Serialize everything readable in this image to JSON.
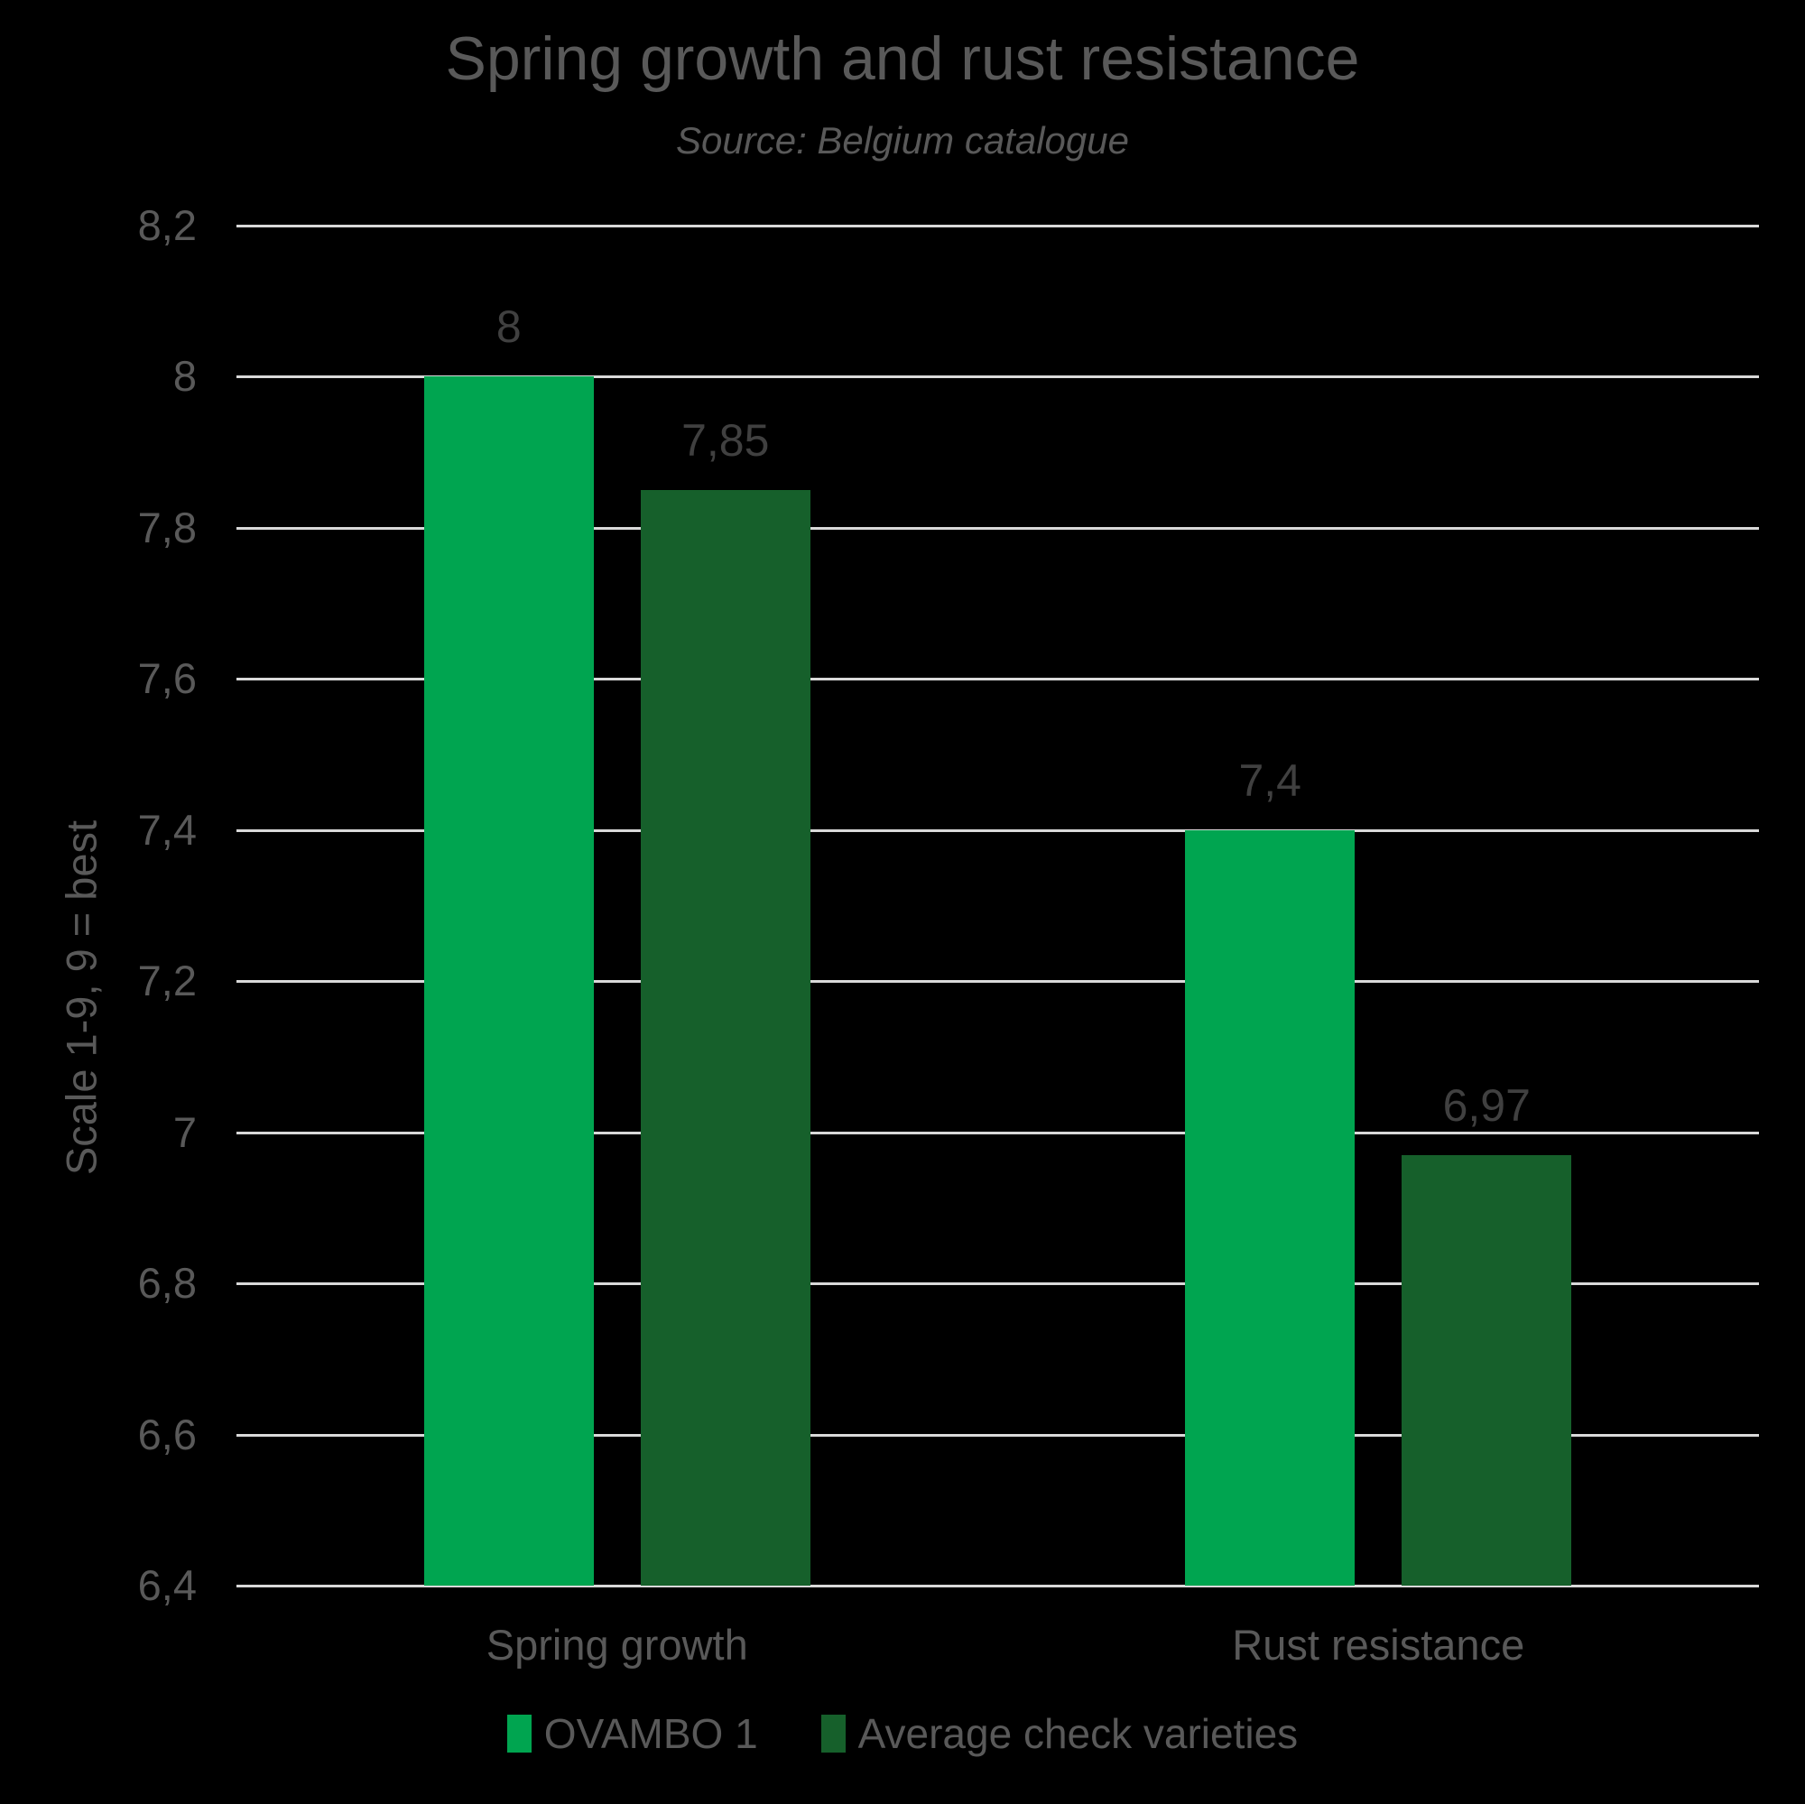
{
  "chart_data": {
    "type": "bar",
    "title": "Spring growth and rust resistance",
    "subtitle": "Source: Belgium catalogue",
    "ylabel": "Scale 1-9, 9 = best",
    "categories": [
      "Spring growth",
      "Rust resistance"
    ],
    "series": [
      {
        "name": "OVAMBO 1",
        "color": "#00A550",
        "values": [
          8,
          7.4
        ],
        "value_labels": [
          "8",
          "7,4"
        ]
      },
      {
        "name": "Average check varieties",
        "color": "#16602B",
        "values": [
          7.85,
          6.97
        ],
        "value_labels": [
          "7,85",
          "6,97"
        ]
      }
    ],
    "ylim": [
      6.4,
      8.2
    ],
    "ytick_step": 0.2,
    "ytick_labels": [
      "6,4",
      "6,6",
      "6,8",
      "7",
      "7,2",
      "7,4",
      "7,6",
      "7,8",
      "8",
      "8,2"
    ],
    "grid": true,
    "legend_position": "bottom",
    "decimal_separator": ","
  },
  "colors": {
    "background": "#000000",
    "gridline": "#D9D9D9",
    "title_text": "#595959",
    "subtitle_text": "#595959",
    "axis_text": "#595959",
    "category_text": "#595959",
    "legend_text": "#595959",
    "data_label_text": "#404040"
  }
}
